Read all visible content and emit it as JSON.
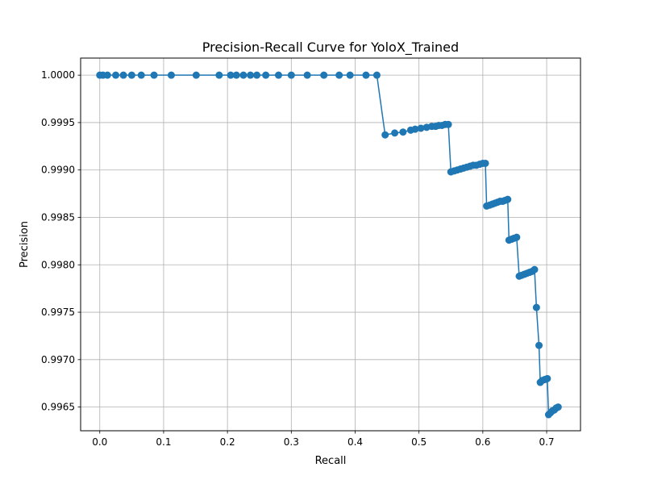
{
  "chart_data": {
    "type": "line",
    "title": "Precision-Recall Curve for YoloX_Trained",
    "xlabel": "Recall",
    "ylabel": "Precision",
    "xlim": [
      -0.03,
      0.753
    ],
    "ylim": [
      0.99625,
      1.00018
    ],
    "grid": true,
    "color": "#1f77b4",
    "marker": "circle",
    "xticks": [
      0.0,
      0.1,
      0.2,
      0.3,
      0.4,
      0.5,
      0.6,
      0.7
    ],
    "xtick_labels": [
      "0.0",
      "0.1",
      "0.2",
      "0.3",
      "0.4",
      "0.5",
      "0.6",
      "0.7"
    ],
    "yticks": [
      0.9965,
      0.997,
      0.9975,
      0.998,
      0.9985,
      0.999,
      0.9995,
      1.0
    ],
    "ytick_labels": [
      "0.9965",
      "0.9970",
      "0.9975",
      "0.9980",
      "0.9985",
      "0.9990",
      "0.9995",
      "1.0000"
    ],
    "series": [
      {
        "x": [
          0.0,
          0.005,
          0.012,
          0.025,
          0.037,
          0.05,
          0.065,
          0.085,
          0.112,
          0.151,
          0.187,
          0.205,
          0.214,
          0.225,
          0.236,
          0.246,
          0.26,
          0.28,
          0.3,
          0.325,
          0.351,
          0.375,
          0.392,
          0.417,
          0.434,
          0.447,
          0.462,
          0.475,
          0.487,
          0.494,
          0.503,
          0.512,
          0.52,
          0.526,
          0.531,
          0.536,
          0.541,
          0.546,
          0.55,
          0.555,
          0.56,
          0.565,
          0.57,
          0.575,
          0.58,
          0.585,
          0.59,
          0.595,
          0.6,
          0.604,
          0.606,
          0.611,
          0.615,
          0.619,
          0.623,
          0.627,
          0.631,
          0.635,
          0.639,
          0.641,
          0.645,
          0.649,
          0.653,
          0.657,
          0.661,
          0.665,
          0.669,
          0.673,
          0.677,
          0.681,
          0.684,
          0.688,
          0.69,
          0.693,
          0.697,
          0.701,
          0.703,
          0.706,
          0.709,
          0.712,
          0.715,
          0.718
        ],
        "y": [
          1.0,
          1.0,
          1.0,
          1.0,
          1.0,
          1.0,
          1.0,
          1.0,
          1.0,
          1.0,
          1.0,
          1.0,
          1.0,
          1.0,
          1.0,
          1.0,
          1.0,
          1.0,
          1.0,
          1.0,
          1.0,
          1.0,
          1.0,
          1.0,
          1.0,
          0.99937,
          0.99939,
          0.9994,
          0.99942,
          0.99943,
          0.99944,
          0.99945,
          0.99946,
          0.99946,
          0.99947,
          0.99947,
          0.99948,
          0.99948,
          0.99898,
          0.99899,
          0.999,
          0.99901,
          0.99902,
          0.99903,
          0.99904,
          0.99905,
          0.99905,
          0.99906,
          0.99907,
          0.99907,
          0.99862,
          0.99863,
          0.99864,
          0.99865,
          0.99866,
          0.99867,
          0.99867,
          0.99868,
          0.99869,
          0.99826,
          0.99827,
          0.99828,
          0.99829,
          0.99788,
          0.99789,
          0.9979,
          0.99791,
          0.99792,
          0.99793,
          0.99795,
          0.99755,
          0.99715,
          0.99676,
          0.99678,
          0.99679,
          0.9968,
          0.99642,
          0.99644,
          0.99646,
          0.99647,
          0.99649,
          0.9965
        ]
      }
    ]
  }
}
